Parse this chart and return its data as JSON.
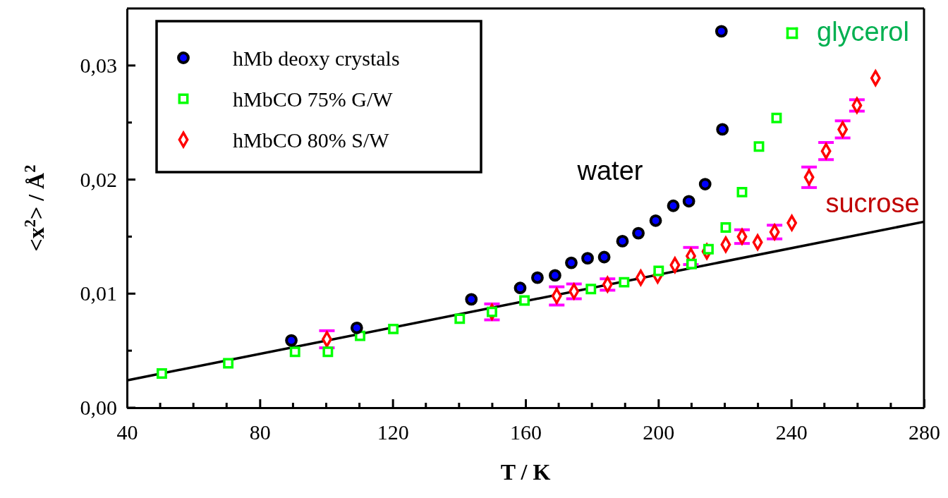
{
  "chart_data": {
    "type": "scatter",
    "xlabel": "T / K",
    "ylabel": "<x$^{2}$> / Å$^{2}$",
    "xlim": [
      40,
      280
    ],
    "ylim": [
      0,
      0.035
    ],
    "xticks": [
      40,
      80,
      120,
      160,
      200,
      240,
      280
    ],
    "yticks": [
      {
        "value": 0,
        "label": "0,00"
      },
      {
        "value": 0.005,
        "label": null
      },
      {
        "value": 0.01,
        "label": "0,01"
      },
      {
        "value": 0.015,
        "label": null
      },
      {
        "value": 0.02,
        "label": "0,02"
      },
      {
        "value": 0.025,
        "label": null
      },
      {
        "value": 0.03,
        "label": "0,03"
      }
    ],
    "grid": false,
    "legend": "top left",
    "series": [
      {
        "name": "hMb deoxy crystals",
        "color": "#0000ff",
        "marker": "circle",
        "x": [
          89.5,
          109.2,
          143.7,
          158.4,
          163.6,
          168.9,
          173.8,
          178.7,
          183.7,
          189.2,
          194,
          199.2,
          204.5,
          209.2,
          214.1,
          219.3,
          219
        ],
        "values": [
          0.0059,
          0.007,
          0.0095,
          0.0105,
          0.0114,
          0.0116,
          0.0127,
          0.0131,
          0.0132,
          0.0146,
          0.0153,
          0.0164,
          0.0177,
          0.0181,
          0.0196,
          0.0244,
          0.033
        ]
      },
      {
        "name": "hMbCO 75% G/W",
        "color": "#00ff00",
        "marker": "square",
        "x": [
          50.5,
          70.5,
          90.6,
          100.5,
          110.2,
          120.2,
          140.2,
          149.9,
          159.7,
          179.7,
          189.7,
          200.1,
          210,
          215.1,
          220.3,
          225.2,
          230.3,
          235.6
        ],
        "values": [
          0.003,
          0.0039,
          0.0049,
          0.0049,
          0.0063,
          0.0069,
          0.0078,
          0.0084,
          0.0094,
          0.0104,
          0.011,
          0.012,
          0.0126,
          0.0139,
          0.0158,
          0.0189,
          0.0229,
          0.0254
        ]
      },
      {
        "name": "hMbCO 80% S/W",
        "color": "#ff0000",
        "marker": "diamond",
        "x": [
          100.2,
          149.9,
          169.4,
          174.6,
          184.7,
          194.7,
          199.8,
          205,
          209.8,
          214.6,
          220.3,
          225.2,
          229.9,
          235,
          240.2,
          245.4,
          250.5,
          255.5,
          259.8,
          265.4
        ],
        "values": [
          0.006,
          0.0084,
          0.0098,
          0.0102,
          0.0108,
          0.0114,
          0.0116,
          0.0125,
          0.0133,
          0.0137,
          0.0143,
          0.015,
          0.0145,
          0.0154,
          0.0162,
          0.0202,
          0.0225,
          0.0244,
          0.0265,
          0.0289
        ],
        "errors": [
          0.00075,
          0.0007,
          0.0008,
          0.00065,
          0.0005,
          null,
          null,
          null,
          0.00075,
          null,
          null,
          0.0006,
          null,
          0.0006,
          null,
          0.0009,
          0.00075,
          0.00075,
          0.0005,
          null
        ]
      },
      {
        "type": "line",
        "color": "#000000",
        "marker": "none",
        "x": [
          40,
          280
        ],
        "values": [
          0.0024,
          0.0163
        ]
      }
    ],
    "annotations": [
      "water",
      "sucrose",
      "glycerol"
    ]
  }
}
